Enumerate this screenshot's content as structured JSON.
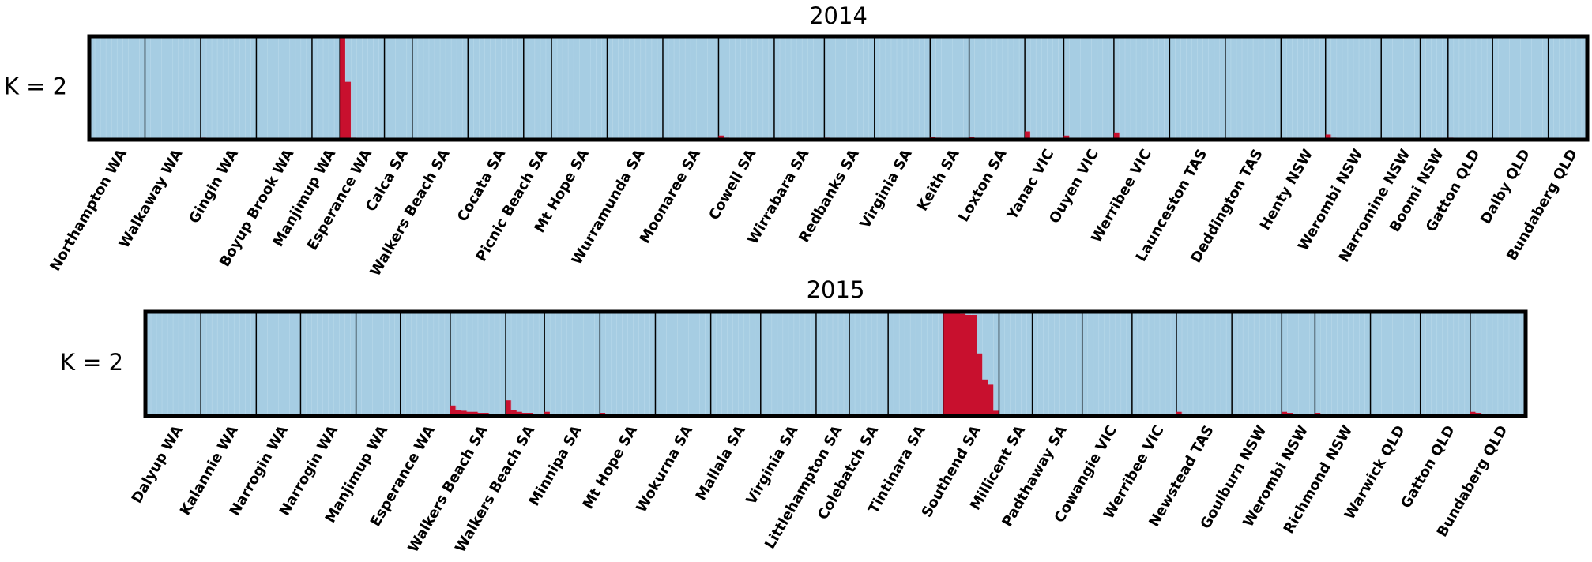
{
  "chart_data": [
    {
      "type": "structure",
      "title": "2014",
      "y_label": "K = 2",
      "color": "#c8102e",
      "background_color": "#a6cde3",
      "categories": [
        "Northampton WA",
        "Walkaway WA",
        "Gingin WA",
        "Boyup Brook WA",
        "Manjimup WA",
        "Esperance WA",
        "Calca SA",
        "Walkers Beach SA",
        "Cocata SA",
        "Picnic Beach SA",
        "Mt Hope SA",
        "Wurramunda SA",
        "Moonaree SA",
        "Cowell SA",
        "Wirrabara SA",
        "Redbanks SA",
        "Virginia SA",
        "Keith SA",
        "Loxton SA",
        "Yanac VIC",
        "Ouyen VIC",
        "Werribee VIC",
        "Launceston TAS",
        "Deddington TAS",
        "Henty NSW",
        "Werombi NSW",
        "Narromine NSW",
        "Boomi NSW",
        "Gatton QLD",
        "Dalby QLD",
        "Bundaberg QLD"
      ],
      "values": [
        [
          0,
          0,
          0,
          0,
          0,
          0,
          0,
          0,
          0,
          0
        ],
        [
          0,
          0,
          0,
          0,
          0,
          0,
          0,
          0,
          0,
          0
        ],
        [
          0.02,
          0.01,
          0,
          0,
          0,
          0,
          0,
          0,
          0,
          0
        ],
        [
          0,
          0,
          0,
          0,
          0,
          0,
          0,
          0,
          0,
          0
        ],
        [
          0,
          0,
          0,
          0,
          0
        ],
        [
          1,
          0.56,
          0.02,
          0.01,
          0.01,
          0,
          0,
          0
        ],
        [
          0.01,
          0,
          0,
          0,
          0
        ],
        [
          0.01,
          0,
          0,
          0,
          0,
          0,
          0,
          0,
          0,
          0
        ],
        [
          0,
          0,
          0,
          0,
          0,
          0,
          0,
          0,
          0,
          0
        ],
        [
          0,
          0,
          0,
          0,
          0
        ],
        [
          0.01,
          0.01,
          0,
          0,
          0,
          0,
          0,
          0,
          0,
          0
        ],
        [
          0.01,
          0,
          0,
          0,
          0,
          0,
          0,
          0,
          0,
          0
        ],
        [
          0.01,
          0.01,
          0,
          0,
          0,
          0,
          0,
          0,
          0,
          0
        ],
        [
          0.04,
          0.02,
          0.01,
          0.01,
          0.01,
          0,
          0,
          0,
          0,
          0
        ],
        [
          0.01,
          0,
          0,
          0,
          0,
          0,
          0,
          0,
          0
        ],
        [
          0.02,
          0.01,
          0,
          0,
          0,
          0,
          0,
          0,
          0
        ],
        [
          0,
          0,
          0,
          0,
          0,
          0,
          0,
          0,
          0,
          0
        ],
        [
          0.03,
          0.02,
          0.01,
          0,
          0,
          0,
          0
        ],
        [
          0.03,
          0.01,
          0.01,
          0,
          0,
          0,
          0,
          0,
          0,
          0
        ],
        [
          0.08,
          0.01,
          0,
          0,
          0,
          0,
          0
        ],
        [
          0.04,
          0.01,
          0.01,
          0,
          0,
          0,
          0,
          0,
          0
        ],
        [
          0.07,
          0.01,
          0,
          0,
          0,
          0,
          0,
          0,
          0,
          0
        ],
        [
          0,
          0,
          0,
          0,
          0,
          0,
          0,
          0,
          0,
          0
        ],
        [
          0,
          0,
          0,
          0,
          0,
          0,
          0,
          0,
          0,
          0
        ],
        [
          0,
          0,
          0,
          0,
          0,
          0,
          0,
          0
        ],
        [
          0.05,
          0.02,
          0.01,
          0.01,
          0,
          0,
          0,
          0,
          0,
          0
        ],
        [
          0,
          0,
          0,
          0,
          0,
          0,
          0
        ],
        [
          0,
          0,
          0,
          0,
          0
        ],
        [
          0.02,
          0,
          0,
          0,
          0,
          0,
          0,
          0
        ],
        [
          0.01,
          0,
          0,
          0,
          0,
          0,
          0,
          0,
          0,
          0
        ],
        [
          0,
          0,
          0,
          0,
          0,
          0,
          0
        ]
      ]
    },
    {
      "type": "structure",
      "title": "2015",
      "y_label": "K = 2",
      "color": "#c8102e",
      "background_color": "#a6cde3",
      "categories": [
        "Dalyup WA",
        "Kalannie WA",
        "Narrogin WA",
        "Narrogin WA",
        "Manjimup WA",
        "Esperance WA",
        "Walkers Beach SA",
        "Walkers Beach SA",
        "Minnipa SA",
        "Mt Hope SA",
        "Wokurna SA",
        "Mallala SA",
        "Virginia SA",
        "Littlehampton SA",
        "Colebatch SA",
        "Tintinara SA",
        "Southend SA",
        "Millicent SA",
        "Padthaway SA",
        "Cowangie VIC",
        "Werribee VIC",
        "Newstead TAS",
        "Goulburn NSW",
        "Werombi NSW",
        "Richmond NSW",
        "Warwick QLD",
        "Gatton QLD",
        "Bundaberg QLD"
      ],
      "values": [
        [
          0,
          0,
          0,
          0,
          0,
          0,
          0,
          0,
          0,
          0
        ],
        [
          0.02,
          0.02,
          0.02,
          0.01,
          0.01,
          0.01,
          0,
          0,
          0,
          0
        ],
        [
          0.01,
          0.01,
          0,
          0,
          0,
          0,
          0,
          0
        ],
        [
          0.02,
          0.01,
          0,
          0,
          0,
          0,
          0,
          0,
          0,
          0
        ],
        [
          0,
          0,
          0,
          0,
          0,
          0,
          0,
          0
        ],
        [
          0,
          0,
          0,
          0,
          0,
          0,
          0,
          0,
          0
        ],
        [
          0.1,
          0.06,
          0.05,
          0.04,
          0.04,
          0.03,
          0.03,
          0.02,
          0.02,
          0.02
        ],
        [
          0.15,
          0.06,
          0.04,
          0.03,
          0.03,
          0.02,
          0.02
        ],
        [
          0.04,
          0.02,
          0.01,
          0.01,
          0,
          0,
          0,
          0,
          0,
          0
        ],
        [
          0.03,
          0.02,
          0.01,
          0.01,
          0,
          0,
          0,
          0,
          0,
          0
        ],
        [
          0.02,
          0.02,
          0.01,
          0.01,
          0,
          0,
          0,
          0,
          0,
          0
        ],
        [
          0.01,
          0,
          0,
          0,
          0,
          0,
          0,
          0,
          0
        ],
        [
          0.02,
          0.01,
          0.01,
          0,
          0,
          0,
          0,
          0,
          0,
          0
        ],
        [
          0.02,
          0.01,
          0,
          0,
          0,
          0
        ],
        [
          0,
          0,
          0,
          0,
          0,
          0,
          0
        ],
        [
          0,
          0,
          0,
          0,
          0,
          0,
          0,
          0,
          0,
          0
        ],
        [
          1,
          1,
          0.99,
          0.98,
          0.97,
          0.97,
          0.6,
          0.35,
          0.3,
          0.05
        ],
        [
          0.02,
          0.01,
          0,
          0,
          0,
          0
        ],
        [
          0.01,
          0,
          0,
          0,
          0,
          0,
          0,
          0,
          0
        ],
        [
          0.02,
          0.01,
          0,
          0,
          0,
          0,
          0,
          0,
          0
        ],
        [
          0.01,
          0,
          0,
          0,
          0,
          0,
          0,
          0
        ],
        [
          0.04,
          0.01,
          0.01,
          0,
          0,
          0,
          0,
          0,
          0,
          0
        ],
        [
          0.01,
          0,
          0,
          0,
          0,
          0,
          0,
          0,
          0
        ],
        [
          0.04,
          0.03,
          0.02,
          0.01,
          0,
          0
        ],
        [
          0.03,
          0.02,
          0.02,
          0.01,
          0.01,
          0,
          0,
          0,
          0,
          0
        ],
        [
          0.01,
          0,
          0,
          0,
          0,
          0,
          0,
          0,
          0
        ],
        [
          0.01,
          0.01,
          0,
          0,
          0,
          0,
          0,
          0,
          0
        ],
        [
          0.04,
          0.03,
          0.02,
          0.02,
          0.01,
          0.01,
          0,
          0,
          0,
          0
        ]
      ]
    }
  ]
}
